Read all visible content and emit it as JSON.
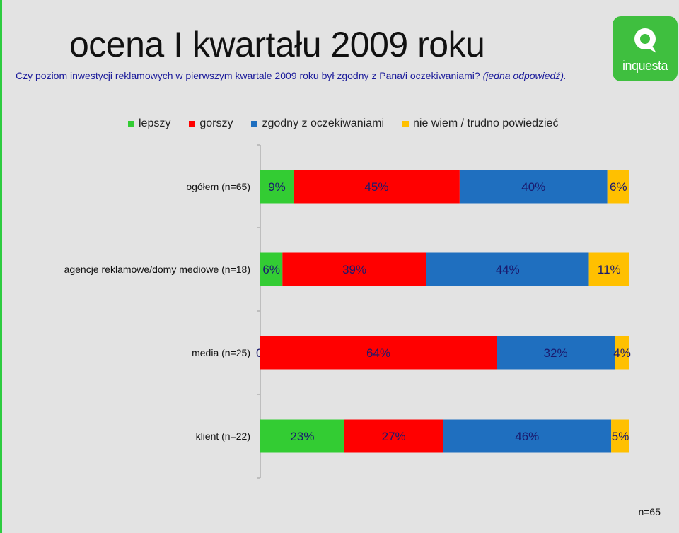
{
  "title": "ocena I kwartału 2009 roku",
  "question": {
    "text": "Czy poziom inwestycji reklamowych w pierwszym kwartale 2009 roku był zgodny z Pana/i oczekiwaniami?",
    "note": "(jedna odpowiedź)."
  },
  "logo": {
    "text": "inquesta"
  },
  "footer": {
    "n": "n=65"
  },
  "colors": {
    "lepszy": "#33cc33",
    "gorszy": "#ff0000",
    "zgodny": "#1f6fbf",
    "nie_wiem": "#ffc000"
  },
  "chart_data": {
    "type": "bar",
    "stacked": true,
    "orientation": "horizontal",
    "categories": [
      "ogółem (n=65)",
      "agencje reklamowe/domy mediowe (n=18)",
      "media (n=25)",
      "klient (n=22)"
    ],
    "series": [
      {
        "name": "lepszy",
        "values": [
          9,
          6,
          0,
          23
        ],
        "labels": [
          "9%",
          "6%",
          "0%",
          "23%"
        ]
      },
      {
        "name": "gorszy",
        "values": [
          45,
          39,
          64,
          27
        ],
        "labels": [
          "45%",
          "39%",
          "64%",
          "27%"
        ]
      },
      {
        "name": "zgodny z oczekiwaniami",
        "values": [
          40,
          44,
          32,
          46
        ],
        "labels": [
          "40%",
          "44%",
          "32%",
          "46%"
        ]
      },
      {
        "name": "nie wiem / trudno powiedzieć",
        "values": [
          6,
          11,
          4,
          5
        ],
        "labels": [
          "6%",
          "11%",
          "4%",
          "5%"
        ]
      }
    ],
    "legend_position": "top",
    "grid": false
  }
}
